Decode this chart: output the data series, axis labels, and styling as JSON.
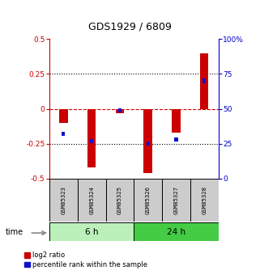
{
  "title": "GDS1929 / 6809",
  "samples": [
    "GSM85323",
    "GSM85324",
    "GSM85325",
    "GSM85326",
    "GSM85327",
    "GSM85328"
  ],
  "log2_ratio": [
    -0.1,
    -0.42,
    -0.03,
    -0.46,
    -0.17,
    0.4
  ],
  "percentile_rank_pct": [
    32,
    27,
    49,
    25,
    28,
    70
  ],
  "ylim_left": [
    -0.5,
    0.5
  ],
  "ylim_right": [
    0,
    100
  ],
  "yticks_left": [
    -0.5,
    -0.25,
    0,
    0.25,
    0.5
  ],
  "yticks_right": [
    0,
    25,
    50,
    75,
    100
  ],
  "ytick_labels_left": [
    "-0.5",
    "-0.25",
    "0",
    "0.25",
    "0.5"
  ],
  "ytick_labels_right": [
    "0",
    "25",
    "50",
    "75",
    "100%"
  ],
  "group_6h_label": "6 h",
  "group_24h_label": "24 h",
  "time_label": "time",
  "bar_color_red": "#cc0000",
  "bar_color_blue": "#1111cc",
  "color_left_axis": "#cc0000",
  "color_right_axis": "#0000cc",
  "bar_width": 0.3,
  "blue_bar_height": 0.03,
  "blue_bar_width": 0.12,
  "zero_line_color": "#cc0000",
  "dotted_line_color": "#000000",
  "group_6h_color": "#bbf0bb",
  "group_24h_color": "#44cc44",
  "sample_box_color": "#cccccc",
  "legend_red_label": "log2 ratio",
  "legend_blue_label": "percentile rank within the sample"
}
